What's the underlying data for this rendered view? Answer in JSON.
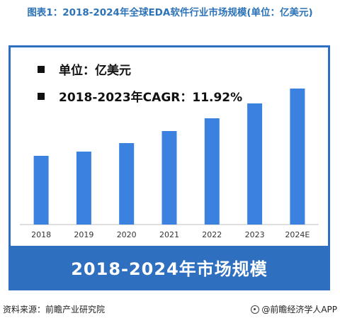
{
  "title": "图表1：2018-2024年全球EDA软件行业市场规模(单位：亿美元)",
  "legend_text": {
    "unit": "单位：亿美元",
    "cagr": "2018-2023年CAGR：11.92%"
  },
  "banner": "2018-2024年市场规模",
  "footer": {
    "source": "资料来源：前瞻产业研究院",
    "brand": "@前瞻经济学人APP"
  },
  "colors": {
    "bar": "#3b82e0",
    "frame": "#2f6fc0",
    "title": "#2c73b8"
  },
  "chart_data": {
    "type": "bar",
    "title": "2018-2024年市场规模",
    "categories": [
      "2018",
      "2019",
      "2020",
      "2021",
      "2022",
      "2023",
      "2024E"
    ],
    "values": [
      97,
      103,
      115,
      132,
      150,
      171,
      192
    ],
    "ylabel": "亿美元",
    "ylim": [
      0,
      200
    ],
    "grid": false,
    "legend_position": "top-left"
  }
}
